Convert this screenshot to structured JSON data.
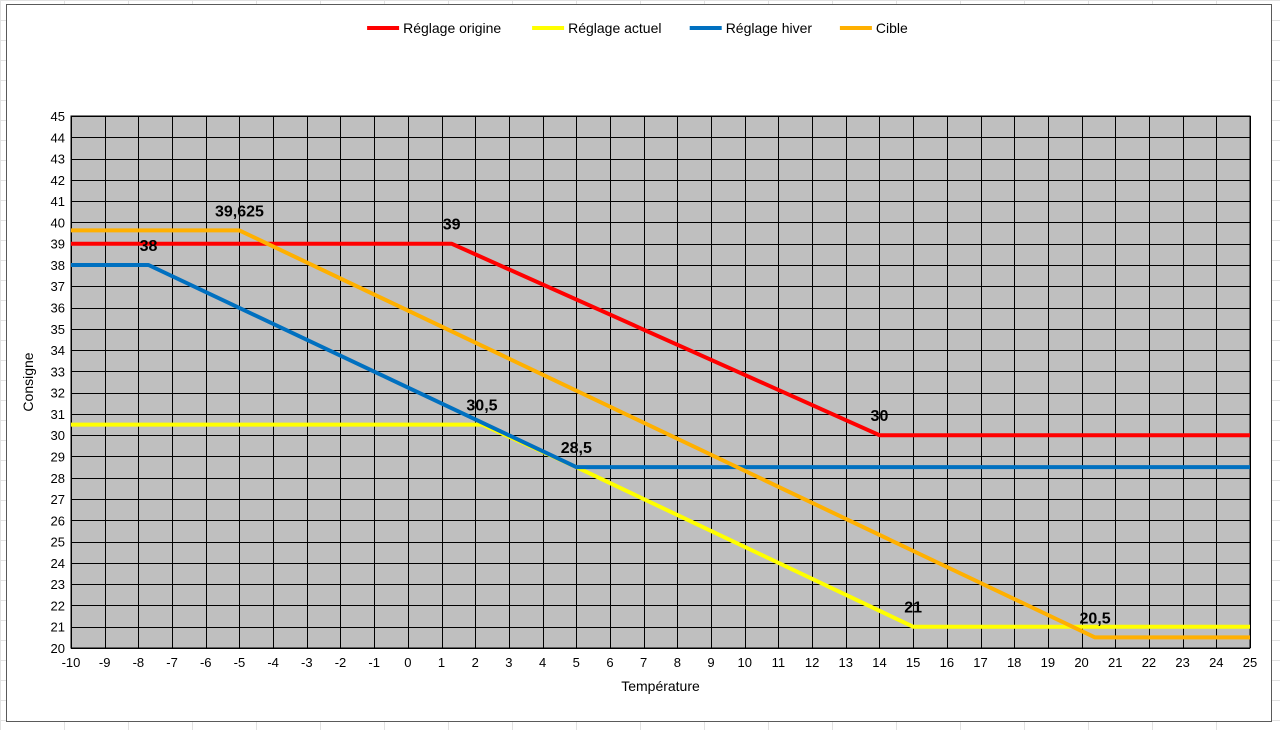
{
  "chart_data": {
    "type": "line",
    "title": "",
    "xlabel": "Température",
    "ylabel": "Consigne",
    "xlim": [
      -10,
      25
    ],
    "ylim": [
      20,
      45
    ],
    "x_ticks": [
      -10,
      -9,
      -8,
      -7,
      -6,
      -5,
      -4,
      -3,
      -2,
      -1,
      0,
      1,
      2,
      3,
      4,
      5,
      6,
      7,
      8,
      9,
      10,
      11,
      12,
      13,
      14,
      15,
      16,
      17,
      18,
      19,
      20,
      21,
      22,
      23,
      24,
      25
    ],
    "y_ticks": [
      20,
      21,
      22,
      23,
      24,
      25,
      26,
      27,
      28,
      29,
      30,
      31,
      32,
      33,
      34,
      35,
      36,
      37,
      38,
      39,
      40,
      41,
      42,
      43,
      44,
      45
    ],
    "grid": true,
    "plot_background": "#bfbfbf",
    "legend_position": "top",
    "series": [
      {
        "name": "Réglage origine",
        "color": "#ff0000",
        "points": [
          [
            -10,
            39
          ],
          [
            1.3,
            39
          ],
          [
            14,
            30
          ],
          [
            25,
            30
          ]
        ]
      },
      {
        "name": "Réglage actuel",
        "color": "#ffff00",
        "points": [
          [
            -10,
            30.5
          ],
          [
            2.2,
            30.5
          ],
          [
            5,
            28.5
          ],
          [
            15,
            21
          ],
          [
            25,
            21
          ]
        ]
      },
      {
        "name": "Réglage hiver",
        "color": "#0070c0",
        "points": [
          [
            -10,
            38
          ],
          [
            -7.7,
            38
          ],
          [
            5,
            28.5
          ],
          [
            25,
            28.5
          ]
        ]
      },
      {
        "name": "Cible",
        "color": "#ffb000",
        "points": [
          [
            -10,
            39.625
          ],
          [
            -5,
            39.625
          ],
          [
            20.4,
            20.5
          ],
          [
            25,
            20.5
          ]
        ]
      }
    ],
    "annotations": [
      {
        "text": "39,625",
        "x": -5,
        "y": 39.625
      },
      {
        "text": "38",
        "x": -7.7,
        "y": 38
      },
      {
        "text": "39",
        "x": 1.3,
        "y": 39
      },
      {
        "text": "30,5",
        "x": 2.2,
        "y": 30.5
      },
      {
        "text": "28,5",
        "x": 5,
        "y": 28.5
      },
      {
        "text": "30",
        "x": 14,
        "y": 30
      },
      {
        "text": "21",
        "x": 15,
        "y": 21
      },
      {
        "text": "20,5",
        "x": 20.4,
        "y": 20.5
      }
    ]
  }
}
